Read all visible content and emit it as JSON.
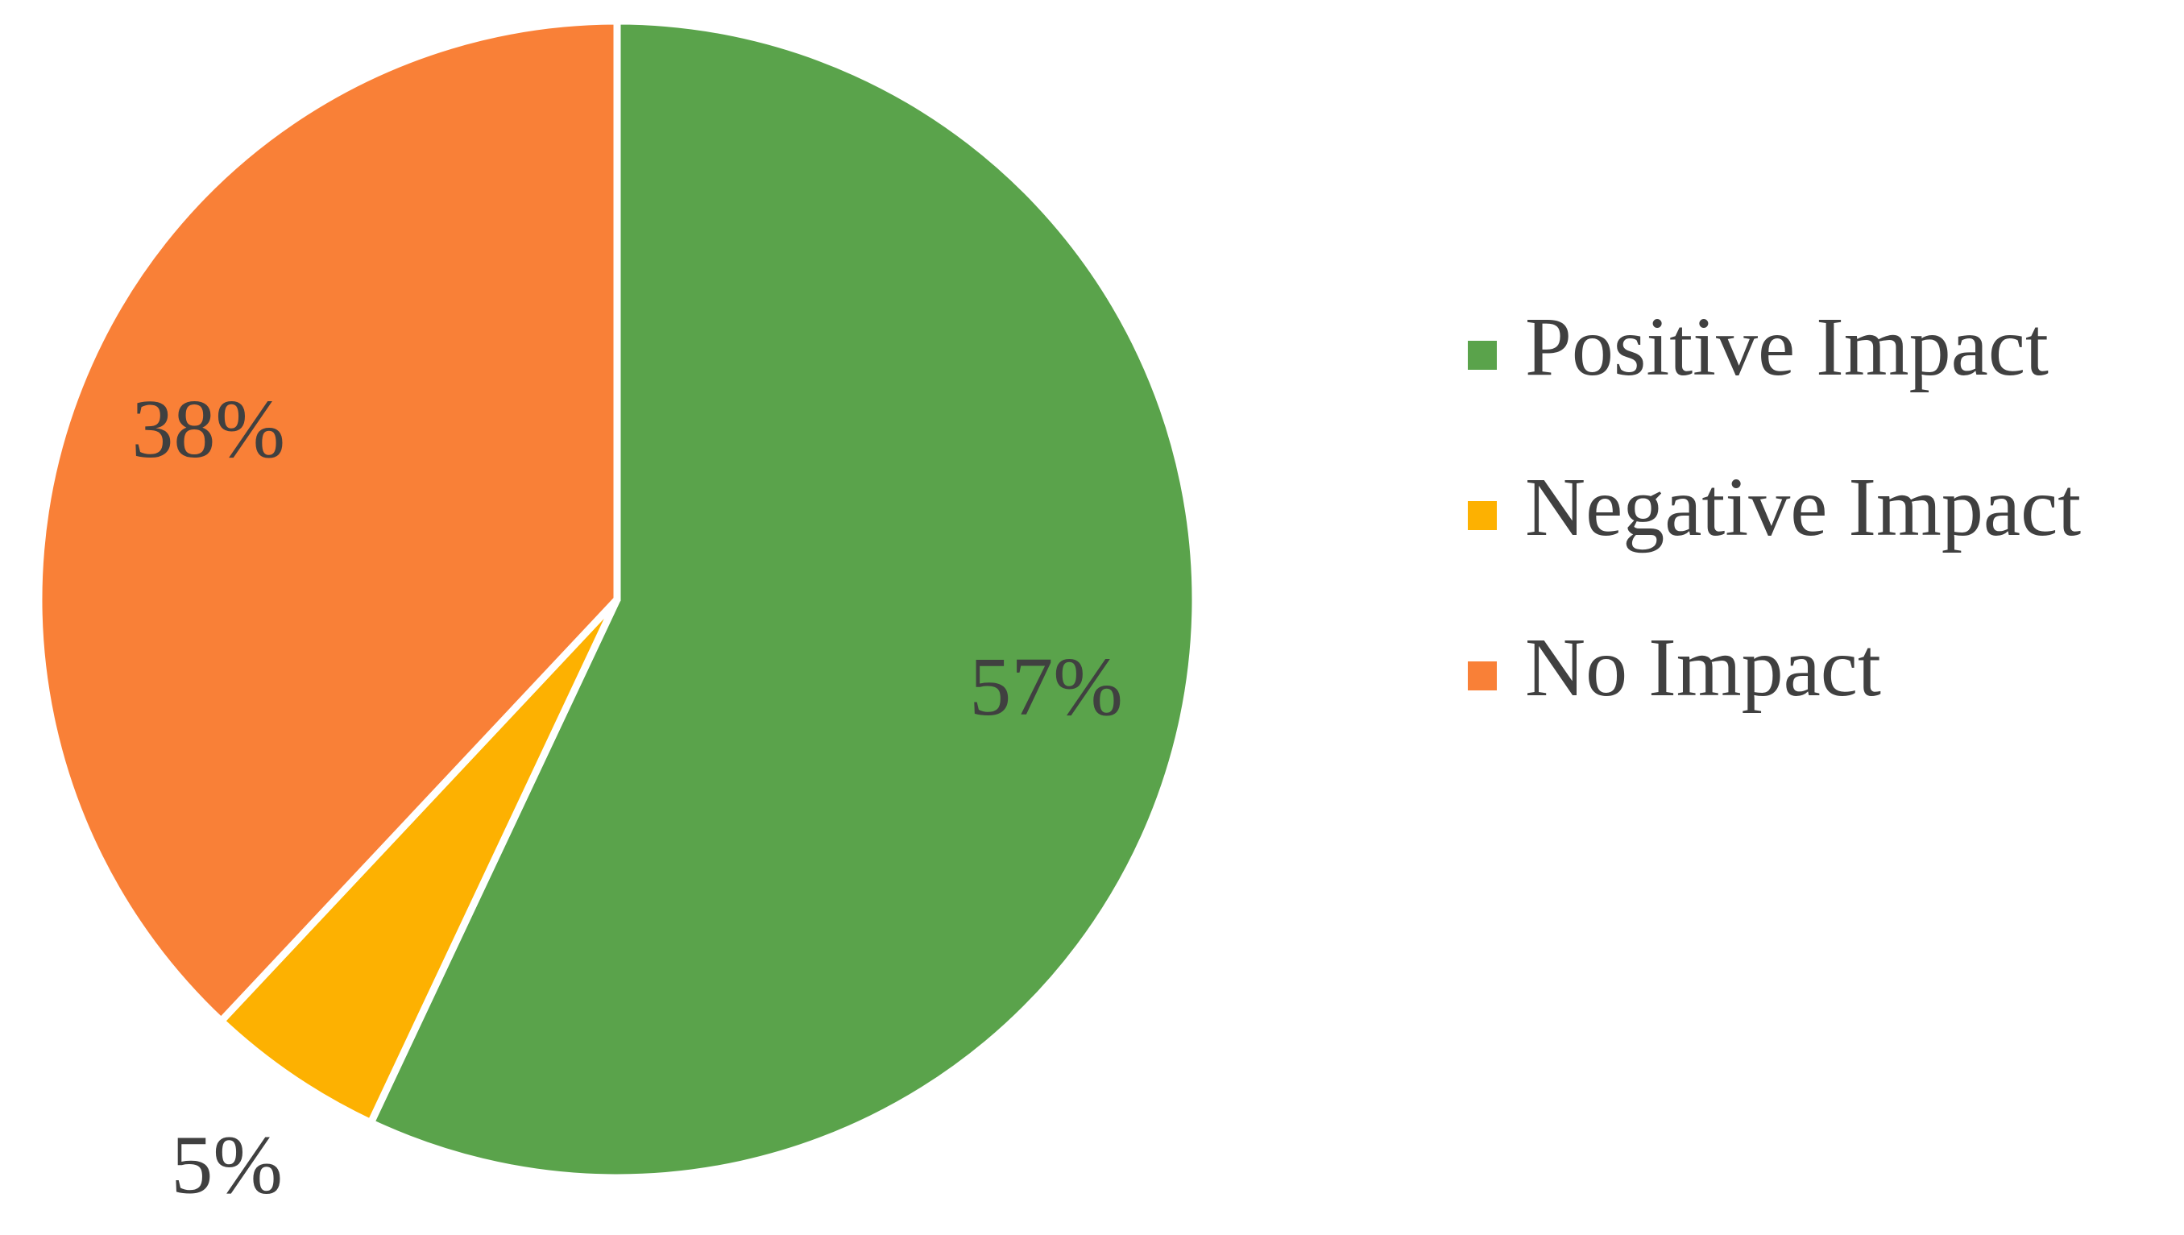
{
  "chart_data": {
    "type": "pie",
    "categories": [
      "Positive Impact",
      "Negative Impact",
      "No Impact"
    ],
    "values": [
      57,
      5,
      38
    ],
    "value_labels": [
      "57%",
      "5%",
      "38%"
    ],
    "colors": [
      "#5aa34b",
      "#fdb101",
      "#f98037"
    ]
  }
}
